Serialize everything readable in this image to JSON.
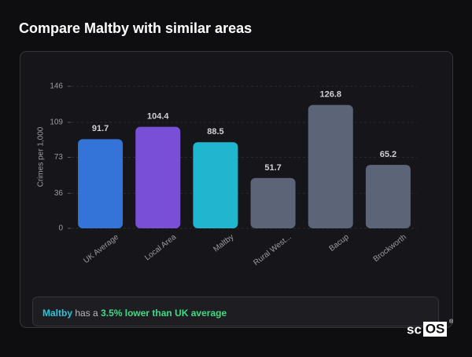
{
  "chart_data": {
    "type": "bar",
    "title": "Compare Maltby with similar areas",
    "y_label": "Crimes per 1,000",
    "categories": [
      "UK Average",
      "Local Area",
      "Maltby",
      "Rural West...",
      "Bacup",
      "Brockworth"
    ],
    "values": [
      91.7,
      104.4,
      88.5,
      51.7,
      126.8,
      65.2
    ],
    "colors": [
      "#3474d9",
      "#7a4fd8",
      "#21b6cf",
      "#5b6577",
      "#5b6577",
      "#5b6577"
    ],
    "ylim": [
      0,
      146
    ],
    "yticks": [
      0,
      36,
      73,
      109,
      146
    ],
    "grid": true
  },
  "summary": {
    "area": "Maltby",
    "middle": "has a",
    "comparison": "3.5% lower than UK average"
  },
  "logo": {
    "left": "sc",
    "boxed": "OS",
    "mark": "®"
  }
}
